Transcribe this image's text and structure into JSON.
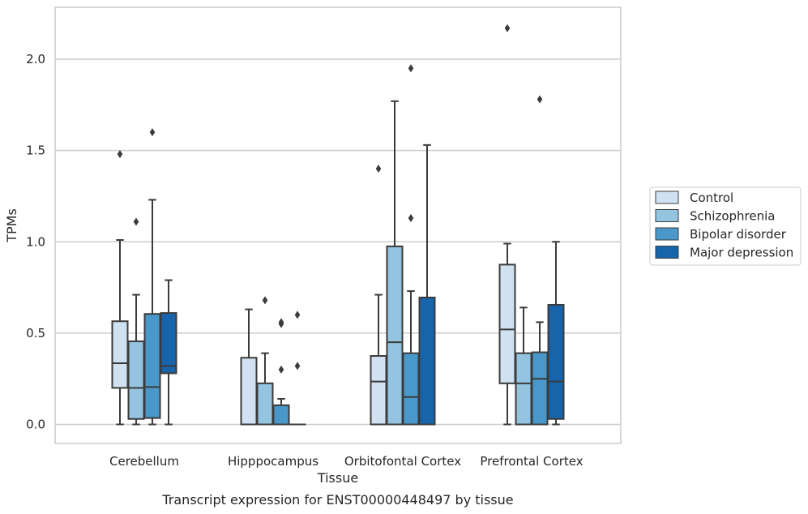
{
  "chart_data": {
    "type": "box",
    "xlabel": "Tissue",
    "ylabel": "TPMs",
    "ylim": [
      -0.1,
      2.28
    ],
    "yticks": [
      "0.0",
      "0.5",
      "1.0",
      "1.5",
      "2.0"
    ],
    "ytick_values": [
      0,
      0.5,
      1.0,
      1.5,
      2.0
    ],
    "grid": "horizontal",
    "legend_position": "right",
    "categories": [
      "Cerebellum",
      "Hipppocampus",
      "Orbitofontal Cortex",
      "Prefrontal Cortex"
    ],
    "series": [
      {
        "name": "Control",
        "color": "#d0e1f2",
        "boxes": [
          {
            "whislo": 0.0,
            "q1": 0.2,
            "med": 0.335,
            "q3": 0.565,
            "whishi": 1.01,
            "fliers": [
              1.48
            ]
          },
          {
            "whislo": 0.0,
            "q1": 0.0,
            "med": 0.0,
            "q3": 0.365,
            "whishi": 0.63,
            "fliers": []
          },
          {
            "whislo": 0.0,
            "q1": 0.0,
            "med": 0.235,
            "q3": 0.375,
            "whishi": 0.71,
            "fliers": [
              1.4
            ]
          },
          {
            "whislo": 0.0,
            "q1": 0.225,
            "med": 0.52,
            "q3": 0.875,
            "whishi": 0.99,
            "fliers": [
              2.17
            ]
          }
        ]
      },
      {
        "name": "Schizophrenia",
        "color": "#94c4df",
        "boxes": [
          {
            "whislo": 0.0,
            "q1": 0.03,
            "med": 0.2,
            "q3": 0.455,
            "whishi": 0.71,
            "fliers": [
              1.11
            ]
          },
          {
            "whislo": 0.0,
            "q1": 0.0,
            "med": 0.0,
            "q3": 0.225,
            "whishi": 0.39,
            "fliers": [
              0.68
            ]
          },
          {
            "whislo": 0.0,
            "q1": 0.0,
            "med": 0.45,
            "q3": 0.975,
            "whishi": 1.77,
            "fliers": []
          },
          {
            "whislo": 0.0,
            "q1": 0.0,
            "med": 0.225,
            "q3": 0.39,
            "whishi": 0.64,
            "fliers": []
          }
        ]
      },
      {
        "name": "Bipolar disorder",
        "color": "#4a98c9",
        "boxes": [
          {
            "whislo": 0.0,
            "q1": 0.035,
            "med": 0.205,
            "q3": 0.605,
            "whishi": 1.23,
            "fliers": [
              1.6
            ]
          },
          {
            "whislo": 0.0,
            "q1": 0.0,
            "med": 0.0,
            "q3": 0.105,
            "whishi": 0.14,
            "fliers": [
              0.3,
              0.55,
              0.56
            ]
          },
          {
            "whislo": 0.0,
            "q1": 0.0,
            "med": 0.15,
            "q3": 0.39,
            "whishi": 0.73,
            "fliers": [
              1.13,
              1.95
            ]
          },
          {
            "whislo": 0.0,
            "q1": 0.0,
            "med": 0.25,
            "q3": 0.395,
            "whishi": 0.56,
            "fliers": [
              1.78
            ]
          }
        ]
      },
      {
        "name": "Major depression",
        "color": "#1764ab",
        "boxes": [
          {
            "whislo": 0.0,
            "q1": 0.28,
            "med": 0.32,
            "q3": 0.61,
            "whishi": 0.79,
            "fliers": []
          },
          {
            "whislo": 0.0,
            "q1": 0.0,
            "med": 0.0,
            "q3": 0.0,
            "whishi": 0.0,
            "fliers": [
              0.32,
              0.6
            ]
          },
          {
            "whislo": 0.0,
            "q1": 0.0,
            "med": 0.0,
            "q3": 0.695,
            "whishi": 1.53,
            "fliers": []
          },
          {
            "whislo": 0.0,
            "q1": 0.03,
            "med": 0.235,
            "q3": 0.655,
            "whishi": 1.0,
            "fliers": []
          }
        ]
      }
    ]
  },
  "caption": "Transcript expression for ENST00000448497 by tissue"
}
